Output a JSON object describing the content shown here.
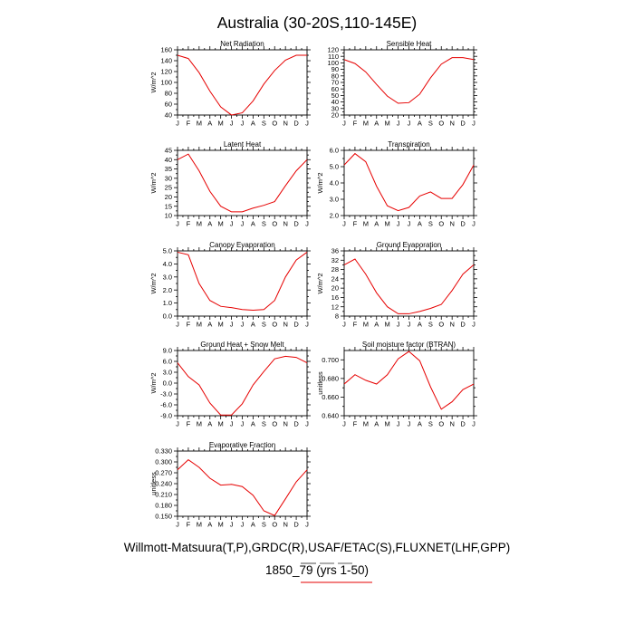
{
  "page": {
    "title": "Australia (30-20S,110-145E)",
    "footer_line1": "Willmott-Matsuura(T,P),GRDC(R),USAF/ETAC(S),FLUXNET(LHF,GPP)",
    "footer_line2": "1850_79 (yrs 1-50)",
    "footer_dash_color": "#4a4a4a",
    "footer_line_color": "#e60000"
  },
  "chart_data": [
    {
      "type": "line",
      "title": "Net Radiation",
      "ylabel": "W/m^2",
      "x": [
        "J",
        "F",
        "M",
        "A",
        "M",
        "J",
        "J",
        "A",
        "S",
        "O",
        "N",
        "D",
        "J"
      ],
      "values": [
        150,
        144,
        118,
        84,
        55,
        40,
        44,
        66,
        97,
        122,
        141,
        150,
        150
      ],
      "ylim": [
        40,
        160
      ],
      "yticks": [
        "40",
        "60",
        "80",
        "100",
        "120",
        "140",
        "160"
      ],
      "color": "#e60000"
    },
    {
      "type": "line",
      "title": "Sensible Heat",
      "ylabel": "",
      "x": [
        "J",
        "F",
        "M",
        "A",
        "M",
        "J",
        "J",
        "A",
        "S",
        "O",
        "N",
        "D",
        "J"
      ],
      "values": [
        105,
        99,
        86,
        67,
        49,
        38,
        39,
        52,
        77,
        98,
        108,
        108,
        105
      ],
      "ylim": [
        20,
        120
      ],
      "yticks": [
        "20",
        "30",
        "40",
        "50",
        "60",
        "70",
        "80",
        "90",
        "100",
        "110",
        "120"
      ],
      "color": "#e60000"
    },
    {
      "type": "line",
      "title": "Latent Heat",
      "ylabel": "W/m^2",
      "x": [
        "J",
        "F",
        "M",
        "A",
        "M",
        "J",
        "J",
        "A",
        "S",
        "O",
        "N",
        "D",
        "J"
      ],
      "values": [
        40,
        43,
        34,
        23,
        15,
        12,
        12,
        14,
        15.5,
        17.5,
        26,
        34,
        40
      ],
      "ylim": [
        10,
        45
      ],
      "yticks": [
        "10",
        "15",
        "20",
        "25",
        "30",
        "35",
        "40",
        "45"
      ],
      "color": "#e60000"
    },
    {
      "type": "line",
      "title": "Transpiration",
      "ylabel": "W/m^2",
      "x": [
        "J",
        "F",
        "M",
        "A",
        "M",
        "J",
        "J",
        "A",
        "S",
        "O",
        "N",
        "D",
        "J"
      ],
      "values": [
        5.1,
        5.8,
        5.3,
        3.8,
        2.6,
        2.3,
        2.5,
        3.2,
        3.45,
        3.05,
        3.05,
        3.9,
        5.1
      ],
      "ylim": [
        2.0,
        6.0
      ],
      "yticks": [
        "2.0",
        "3.0",
        "4.0",
        "5.0",
        "6.0"
      ],
      "color": "#e60000"
    },
    {
      "type": "line",
      "title": "Canopy Evaporation",
      "ylabel": "W/m^2",
      "x": [
        "J",
        "F",
        "M",
        "A",
        "M",
        "J",
        "J",
        "A",
        "S",
        "O",
        "N",
        "D",
        "J"
      ],
      "values": [
        4.9,
        4.7,
        2.5,
        1.2,
        0.75,
        0.65,
        0.5,
        0.45,
        0.5,
        1.2,
        3.0,
        4.3,
        4.9
      ],
      "ylim": [
        0.0,
        5.0
      ],
      "yticks": [
        "0.0",
        "1.0",
        "2.0",
        "3.0",
        "4.0",
        "5.0"
      ],
      "color": "#e60000"
    },
    {
      "type": "line",
      "title": "Ground Evaporation",
      "ylabel": "W/m^2",
      "x": [
        "J",
        "F",
        "M",
        "A",
        "M",
        "J",
        "J",
        "A",
        "S",
        "O",
        "N",
        "D",
        "J"
      ],
      "values": [
        30,
        32.5,
        26,
        18,
        12,
        9,
        9,
        10,
        11.3,
        13,
        19,
        26,
        30
      ],
      "ylim": [
        8,
        36
      ],
      "yticks": [
        "8",
        "12",
        "16",
        "20",
        "24",
        "28",
        "32",
        "36"
      ],
      "color": "#e60000"
    },
    {
      "type": "line",
      "title": "Ground Heat + Snow Melt",
      "ylabel": "W/m^2",
      "x": [
        "J",
        "F",
        "M",
        "A",
        "M",
        "J",
        "J",
        "A",
        "S",
        "O",
        "N",
        "D",
        "J"
      ],
      "values": [
        5.6,
        1.8,
        -0.5,
        -5.5,
        -8.8,
        -8.8,
        -5.7,
        -0.5,
        3.2,
        6.7,
        7.4,
        7.1,
        5.6
      ],
      "ylim": [
        -9.0,
        9.0
      ],
      "yticks": [
        "-9.0",
        "-6.0",
        "-3.0",
        "0.0",
        "3.0",
        "6.0",
        "9.0"
      ],
      "color": "#e60000"
    },
    {
      "type": "line",
      "title": "Soil moisture factor (BTRAN)",
      "ylabel": "unitless",
      "x": [
        "J",
        "F",
        "M",
        "A",
        "M",
        "J",
        "J",
        "A",
        "S",
        "O",
        "N",
        "D",
        "J"
      ],
      "values": [
        0.674,
        0.684,
        0.678,
        0.674,
        0.684,
        0.701,
        0.709,
        0.699,
        0.671,
        0.647,
        0.655,
        0.668,
        0.674
      ],
      "ylim": [
        0.64,
        0.71
      ],
      "yticks": [
        "0.640",
        "0.660",
        "0.680",
        "0.700"
      ],
      "color": "#e60000"
    },
    {
      "type": "line",
      "title": "Evaporative Fraction",
      "ylabel": "unitless",
      "x": [
        "J",
        "F",
        "M",
        "A",
        "M",
        "J",
        "J",
        "A",
        "S",
        "O",
        "N",
        "D",
        "J"
      ],
      "values": [
        0.278,
        0.306,
        0.285,
        0.255,
        0.236,
        0.238,
        0.232,
        0.208,
        0.165,
        0.152,
        0.198,
        0.245,
        0.278
      ],
      "ylim": [
        0.15,
        0.33
      ],
      "yticks": [
        "0.150",
        "0.180",
        "0.210",
        "0.240",
        "0.270",
        "0.300",
        "0.330"
      ],
      "color": "#e60000"
    }
  ]
}
